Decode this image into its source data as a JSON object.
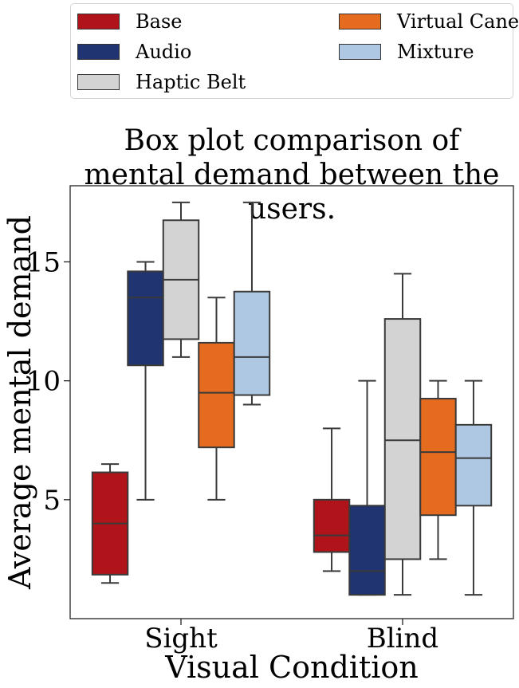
{
  "chart_data": {
    "type": "box",
    "title_lines": [
      "Box plot comparison of",
      "mental demand between the users."
    ],
    "xlabel": "Visual Condition",
    "ylabel": "Average mental demand",
    "categories": [
      "Sight",
      "Blind"
    ],
    "ylim": [
      0,
      18.2
    ],
    "yticks": [
      5,
      10,
      15
    ],
    "grid": false,
    "legend_position": "top, above plot (2 columns)",
    "series": [
      {
        "name": "Base",
        "color": "#b0141a",
        "boxes": [
          {
            "min": 1.5,
            "q1": 1.85,
            "median": 4.0,
            "q3": 6.15,
            "max": 6.5
          },
          {
            "min": 2.0,
            "q1": 2.8,
            "median": 3.5,
            "q3": 5.0,
            "max": 8.0
          }
        ]
      },
      {
        "name": "Audio",
        "color": "#1f3470",
        "boxes": [
          {
            "min": 5.0,
            "q1": 10.65,
            "median": 13.5,
            "q3": 14.6,
            "max": 15.0
          },
          {
            "min": 1.0,
            "q1": 1.0,
            "median": 2.0,
            "q3": 4.75,
            "max": 10.0
          }
        ]
      },
      {
        "name": "Haptic Belt",
        "color": "#d3d3d3",
        "boxes": [
          {
            "min": 11.0,
            "q1": 11.75,
            "median": 14.25,
            "q3": 16.75,
            "max": 17.5
          },
          {
            "min": 1.0,
            "q1": 2.5,
            "median": 7.5,
            "q3": 12.6,
            "max": 14.5
          }
        ]
      },
      {
        "name": "Virtual Cane",
        "color": "#e56b1f",
        "boxes": [
          {
            "min": 5.0,
            "q1": 7.2,
            "median": 9.5,
            "q3": 11.6,
            "max": 13.5
          },
          {
            "min": 2.5,
            "q1": 4.35,
            "median": 7.0,
            "q3": 9.25,
            "max": 10.0
          }
        ]
      },
      {
        "name": "Mixture",
        "color": "#aec7e2",
        "boxes": [
          {
            "min": 9.0,
            "q1": 9.4,
            "median": 11.0,
            "q3": 13.75,
            "max": 17.5
          },
          {
            "min": 1.0,
            "q1": 4.75,
            "median": 6.75,
            "q3": 8.15,
            "max": 10.0
          }
        ]
      }
    ]
  }
}
